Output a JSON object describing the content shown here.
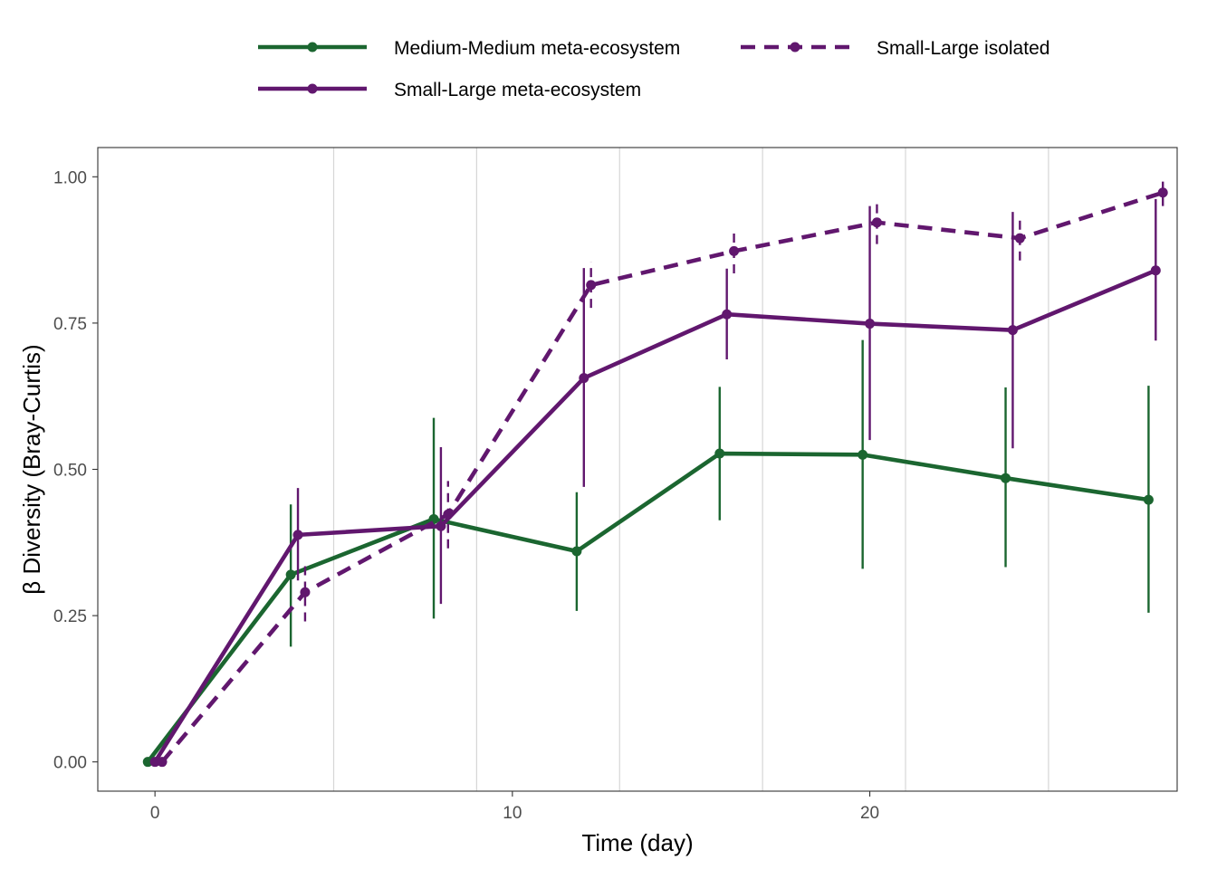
{
  "chart_data": {
    "type": "line",
    "xlabel": "Time (day)",
    "ylabel": "β Diversity (Bray-Curtis)",
    "xlim": [
      -1.6,
      28.6
    ],
    "ylim": [
      -0.05,
      1.05
    ],
    "x_ticks": [
      0,
      10,
      20
    ],
    "y_ticks": [
      0.0,
      0.25,
      0.5,
      0.75,
      1.0
    ],
    "y_tick_labels": [
      "0.00",
      "0.25",
      "0.50",
      "0.75",
      "1.00"
    ],
    "vertical_gridlines": [
      5,
      9,
      13,
      17,
      21,
      25
    ],
    "grid": "vertical-only",
    "legend_position": "top",
    "series": [
      {
        "name": "Medium-Medium meta-ecosystem",
        "color": "#1b6630",
        "linestyle": "solid",
        "x": [
          -0.2,
          3.8,
          7.8,
          11.8,
          15.8,
          19.8,
          23.8,
          27.8
        ],
        "y": [
          0.0,
          0.32,
          0.415,
          0.36,
          0.527,
          0.525,
          0.485,
          0.448
        ],
        "ymin": [
          0.0,
          0.197,
          0.245,
          0.258,
          0.413,
          0.33,
          0.333,
          0.255
        ],
        "ymax": [
          0.0,
          0.44,
          0.588,
          0.461,
          0.641,
          0.721,
          0.64,
          0.643
        ]
      },
      {
        "name": "Small-Large meta-ecosystem",
        "color": "#61176e",
        "linestyle": "solid",
        "x": [
          0.0,
          4.0,
          8.0,
          12.0,
          16.0,
          20.0,
          24.0,
          28.0
        ],
        "y": [
          0.0,
          0.388,
          0.403,
          0.656,
          0.765,
          0.749,
          0.738,
          0.84
        ],
        "ymin": [
          0.0,
          0.31,
          0.27,
          0.47,
          0.688,
          0.55,
          0.536,
          0.72
        ],
        "ymax": [
          0.0,
          0.468,
          0.538,
          0.844,
          0.843,
          0.95,
          0.94,
          0.962
        ]
      },
      {
        "name": "Small-Large isolated",
        "color": "#61176e",
        "linestyle": "dashed",
        "x": [
          0.2,
          4.2,
          8.2,
          12.2,
          16.2,
          20.2,
          24.2,
          28.2
        ],
        "y": [
          0.0,
          0.29,
          0.423,
          0.815,
          0.873,
          0.922,
          0.895,
          0.973
        ],
        "ymin": [
          0.0,
          0.24,
          0.365,
          0.776,
          0.835,
          0.885,
          0.857,
          0.95
        ],
        "ymax": [
          0.0,
          0.338,
          0.48,
          0.855,
          0.913,
          0.962,
          0.935,
          1.0
        ]
      }
    ]
  }
}
